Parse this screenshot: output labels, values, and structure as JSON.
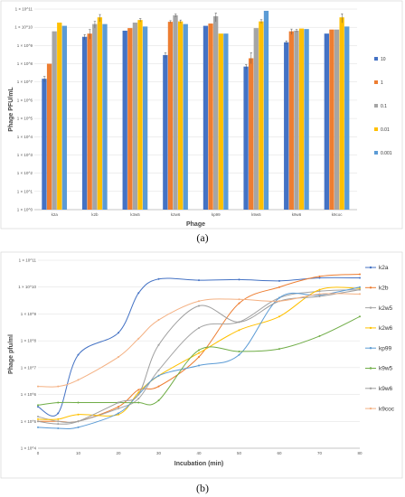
{
  "chart_data": [
    {
      "id": "a",
      "type": "bar",
      "ylabel": "Phage PFU/mL",
      "xlabel": "Phage",
      "y_scale": "log10",
      "ylim_exp": [
        0,
        11
      ],
      "y_tick_labels": [
        "1 × 10^0",
        "1 × 10^1",
        "1 × 10^2",
        "1 × 10^3",
        "1 × 10^4",
        "1 × 10^5",
        "1 × 10^6",
        "1 × 10^7",
        "1 × 10^8",
        "1 × 10^9",
        "1 × 10^10",
        "1 × 10^11"
      ],
      "grid": true,
      "legend_position": "right",
      "categories": [
        "k2a",
        "k2b",
        "k3w5",
        "k2w6",
        "kp99",
        "k9w5",
        "k9w6",
        "k9coc"
      ],
      "series": [
        {
          "name": "10",
          "color": "#4472c4",
          "values": [
            15000000.0,
            3000000000.0,
            6500000000.0,
            300000000.0,
            12000000000.0,
            70000000.0,
            1500000000.0,
            4500000000.0
          ],
          "error_bars": [
            5000000.0,
            1000000000.0,
            0,
            100000000.0,
            0,
            20000000.0,
            300000000.0,
            0
          ]
        },
        {
          "name": "1",
          "color": "#ed7d31",
          "values": [
            100000000.0,
            4500000000.0,
            9000000000.0,
            20000000000.0,
            16000000000.0,
            200000000.0,
            6000000000.0,
            7500000000.0
          ],
          "error_bars": [
            0,
            3000000000.0,
            0,
            3000000000.0,
            0,
            200000000.0,
            2000000000.0,
            0
          ]
        },
        {
          "name": "0.1",
          "color": "#a5a5a5",
          "values": [
            6000000000.0,
            15000000000.0,
            18000000000.0,
            45000000000.0,
            40000000000.0,
            9000000000.0,
            6500000000.0,
            7500000000.0
          ],
          "error_bars": [
            0,
            6000000000.0,
            0,
            8000000000.0,
            20000000000.0,
            0,
            1000000000.0,
            0
          ]
        },
        {
          "name": "0.01",
          "color": "#ffc000",
          "values": [
            18000000000.0,
            35000000000.0,
            25000000000.0,
            21000000000.0,
            4500000000.0,
            21000000000.0,
            8500000000.0,
            35000000000.0
          ],
          "error_bars": [
            0,
            15000000000.0,
            5000000000.0,
            4000000000.0,
            0,
            5000000000.0,
            0,
            20000000000.0
          ]
        },
        {
          "name": "0.001",
          "color": "#5b9bd5",
          "values": [
            12000000000.0,
            15000000000.0,
            11000000000.0,
            15000000000.0,
            4500000000.0,
            80000000000.0,
            8000000000.0,
            11000000000.0
          ],
          "error_bars": [
            0,
            0,
            0,
            0,
            0,
            0,
            0,
            0
          ]
        }
      ]
    },
    {
      "id": "b",
      "type": "line",
      "ylabel": "Phage pfu/ml",
      "xlabel": "Incubation (min)",
      "y_scale": "log10",
      "ylim_exp": [
        4,
        11
      ],
      "y_tick_labels": [
        "1 × 10^4",
        "1 × 10^5",
        "1 × 10^6",
        "1 × 10^7",
        "1 × 10^8",
        "1 × 10^9",
        "1 × 10^10",
        "1 × 10^11"
      ],
      "x_ticks": [
        0,
        10,
        20,
        30,
        40,
        50,
        60,
        70,
        80
      ],
      "xlim": [
        0,
        80
      ],
      "grid": true,
      "legend_position": "right",
      "x": [
        0,
        5,
        10,
        20,
        25,
        30,
        40,
        50,
        60,
        70,
        80
      ],
      "series": [
        {
          "name": "k2a",
          "color": "#4472c4",
          "values": [
            350000.0,
            200000.0,
            30000000.0,
            200000000.0,
            6000000000.0,
            20000000000.0,
            18000000000.0,
            19000000000.0,
            17000000000.0,
            22000000000.0,
            22000000000.0
          ]
        },
        {
          "name": "k2b",
          "color": "#ed7d31",
          "values": [
            100000.0,
            100000.0,
            100000.0,
            350000.0,
            1500000.0,
            2000000.0,
            25000000.0,
            2500000000.0,
            10000000000.0,
            25000000000.0,
            30000000000.0
          ]
        },
        {
          "name": "k2w5",
          "color": "#a5a5a5",
          "values": [
            150000.0,
            100000.0,
            100000.0,
            300000.0,
            700000.0,
            8000000.0,
            300000000.0,
            500000000.0,
            4000000000.0,
            7000000000.0,
            8000000000.0
          ]
        },
        {
          "name": "k2w6",
          "color": "#ffc000",
          "values": [
            120000.0,
            120000.0,
            180000.0,
            180000.0,
            1200000.0,
            5000000.0,
            35000000.0,
            250000000.0,
            800000000.0,
            8000000000.0,
            9000000000.0
          ]
        },
        {
          "name": "kp99",
          "color": "#5b9bd5",
          "values": [
            60000.0,
            55000.0,
            60000.0,
            200000.0,
            1000000.0,
            5000000.0,
            12000000.0,
            30000000.0,
            4000000000.0,
            5000000000.0,
            10000000000.0
          ]
        },
        {
          "name": "k9w5",
          "color": "#70ad47",
          "values": [
            400000.0,
            500000.0,
            500000.0,
            500000.0,
            500000.0,
            600000.0,
            45000000.0,
            40000000.0,
            50000000.0,
            150000000.0,
            800000000.0
          ]
        },
        {
          "name": "k9w6",
          "color": "#9e9e9e",
          "values": [
            100000.0,
            80000.0,
            100000.0,
            500000.0,
            1000000.0,
            70000000.0,
            2000000000.0,
            500000000.0,
            3000000000.0,
            4500000000.0,
            8000000000.0
          ]
        },
        {
          "name": "k9coc",
          "color": "#f4b183",
          "values": [
            2000000.0,
            2000000.0,
            3500000.0,
            25000000.0,
            120000000.0,
            600000000.0,
            3000000000.0,
            3500000000.0,
            3000000000.0,
            5500000000.0,
            5500000000.0
          ]
        }
      ]
    }
  ],
  "captions": {
    "a": "(a)",
    "b": "(b)"
  }
}
